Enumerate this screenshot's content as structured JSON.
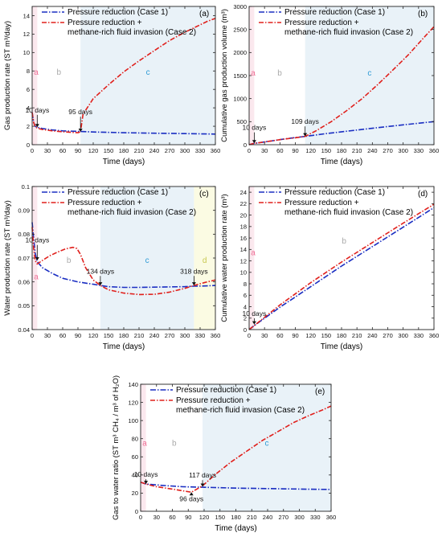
{
  "legend": {
    "case1": "Pressure reduction (Case 1)",
    "case2_line1": "Pressure reduction +",
    "case2_line2": "methane-rich fluid invasion (Case 2)"
  },
  "colors": {
    "case1": "#1a2ec2",
    "case2": "#e0201c",
    "region_a": "#fbe8ee",
    "region_bc": "#e9f2f8",
    "region_d": "#fbfbe3",
    "label_a": "#ee6f96",
    "label_b": "#a9a9a9",
    "label_c": "#2f9bd6",
    "label_d": "#c8c850"
  },
  "chart_data": [
    {
      "type": "line",
      "panel": "(a)",
      "xlabel": "Time (days)",
      "ylabel": "Gas production rate (ST m³/day)",
      "xlim": [
        0,
        360
      ],
      "ylim": [
        0,
        15
      ],
      "xticks": [
        0,
        30,
        60,
        90,
        120,
        150,
        180,
        210,
        240,
        270,
        300,
        330,
        360
      ],
      "yticks": [
        0,
        2,
        4,
        6,
        8,
        10,
        12,
        14
      ],
      "regions": [
        {
          "label": "a",
          "from": 0,
          "to": 10,
          "color": "region_a",
          "label_color": "label_a",
          "label_y": 7.6
        },
        {
          "label": "b",
          "from": 10,
          "to": 95,
          "color": null,
          "label_color": "label_b",
          "label_y": 7.6
        },
        {
          "label": "c",
          "from": 95,
          "to": 360,
          "color": "region_bc",
          "label_color": "label_c",
          "label_y": 7.6
        }
      ],
      "annotations": [
        {
          "text": "10 days",
          "x": 10,
          "y": 1.9,
          "text_y": 3.5
        },
        {
          "text": "95 days",
          "x": 95,
          "y": 1.4,
          "text_y": 3.3
        }
      ],
      "series": [
        {
          "name": "Pressure reduction (Case 1)",
          "key": "case1",
          "x": [
            0,
            3,
            6,
            10,
            20,
            40,
            60,
            90,
            120,
            180,
            240,
            300,
            360
          ],
          "y": [
            3.5,
            2.4,
            2.0,
            1.9,
            1.75,
            1.6,
            1.5,
            1.45,
            1.38,
            1.3,
            1.25,
            1.2,
            1.15
          ]
        },
        {
          "name": "Pressure reduction + methane-rich fluid invasion (Case 2)",
          "key": "case2",
          "x": [
            0,
            3,
            6,
            10,
            20,
            40,
            60,
            90,
            95,
            100,
            120,
            150,
            180,
            210,
            240,
            270,
            300,
            330,
            345,
            360
          ],
          "y": [
            3.5,
            2.4,
            2.0,
            1.8,
            1.65,
            1.5,
            1.4,
            1.3,
            1.4,
            3.3,
            5.0,
            6.5,
            7.9,
            9.1,
            10.2,
            11.3,
            12.2,
            13.0,
            13.4,
            13.7
          ]
        }
      ]
    },
    {
      "type": "line",
      "panel": "(b)",
      "xlabel": "Time (days)",
      "ylabel": "Cumulative gas production volume (m³)",
      "xlim": [
        0,
        360
      ],
      "ylim": [
        0,
        3000
      ],
      "xticks": [
        0,
        30,
        60,
        90,
        120,
        150,
        180,
        210,
        240,
        270,
        300,
        330,
        360
      ],
      "yticks": [
        0,
        500,
        1000,
        1500,
        2000,
        2500,
        3000
      ],
      "regions": [
        {
          "label": "a",
          "from": 0,
          "to": 10,
          "color": "region_a",
          "label_color": "label_a",
          "label_y": 1500
        },
        {
          "label": "b",
          "from": 10,
          "to": 109,
          "color": null,
          "label_color": "label_b",
          "label_y": 1500
        },
        {
          "label": "c",
          "from": 109,
          "to": 360,
          "color": "region_bc",
          "label_color": "label_c",
          "label_y": 1500
        }
      ],
      "annotations": [
        {
          "text": "10 days",
          "x": 10,
          "y": 30,
          "text_y": 320
        },
        {
          "text": "109 days",
          "x": 109,
          "y": 180,
          "text_y": 450
        }
      ],
      "series": [
        {
          "name": "Pressure reduction (Case 1)",
          "key": "case1",
          "x": [
            0,
            10,
            30,
            60,
            90,
            109,
            150,
            200,
            250,
            300,
            360
          ],
          "y": [
            0,
            30,
            60,
            110,
            155,
            180,
            240,
            305,
            370,
            430,
            500
          ]
        },
        {
          "name": "Pressure reduction + methane-rich fluid invasion (Case 2)",
          "key": "case2",
          "x": [
            0,
            10,
            30,
            60,
            90,
            109,
            130,
            160,
            190,
            220,
            250,
            280,
            310,
            340,
            360
          ],
          "y": [
            0,
            30,
            60,
            110,
            150,
            180,
            300,
            500,
            740,
            1000,
            1300,
            1620,
            1950,
            2320,
            2560
          ]
        }
      ]
    },
    {
      "type": "line",
      "panel": "(c)",
      "xlabel": "Time (days)",
      "ylabel": "Water production rate (ST m³/day)",
      "xlim": [
        0,
        360
      ],
      "ylim": [
        0.04,
        0.1
      ],
      "xticks": [
        0,
        30,
        60,
        90,
        120,
        150,
        180,
        210,
        240,
        270,
        300,
        330,
        360
      ],
      "yticks": [
        0.04,
        0.05,
        0.06,
        0.07,
        0.08,
        0.09,
        0.1
      ],
      "regions": [
        {
          "label": "a",
          "from": 0,
          "to": 10,
          "color": "region_a",
          "label_color": "label_a",
          "label_y": 0.061
        },
        {
          "label": "b",
          "from": 10,
          "to": 134,
          "color": null,
          "label_color": "label_b",
          "label_y": 0.068
        },
        {
          "label": "c",
          "from": 134,
          "to": 318,
          "color": "region_bc",
          "label_color": "label_c",
          "label_y": 0.068
        },
        {
          "label": "d",
          "from": 318,
          "to": 360,
          "color": "region_d",
          "label_color": "label_d",
          "label_y": 0.068
        }
      ],
      "annotations": [
        {
          "text": "10 days",
          "x": 10,
          "y": 0.069,
          "text_y": 0.0765
        },
        {
          "text": "134 days",
          "x": 134,
          "y": 0.0585,
          "text_y": 0.0635
        },
        {
          "text": "318 days",
          "x": 318,
          "y": 0.0585,
          "text_y": 0.0635
        }
      ],
      "series": [
        {
          "name": "Pressure reduction (Case 1)",
          "key": "case1",
          "x": [
            0,
            3,
            6,
            10,
            20,
            40,
            60,
            90,
            120,
            134,
            150,
            180,
            210,
            240,
            270,
            300,
            318,
            340,
            360
          ],
          "y": [
            0.085,
            0.078,
            0.072,
            0.0685,
            0.066,
            0.0635,
            0.0615,
            0.06,
            0.059,
            0.0585,
            0.058,
            0.0577,
            0.0577,
            0.0578,
            0.0579,
            0.058,
            0.0582,
            0.0583,
            0.0585
          ]
        },
        {
          "name": "Pressure reduction + methane-rich fluid invasion (Case 2)",
          "key": "case2",
          "x": [
            0,
            3,
            6,
            10,
            20,
            35,
            50,
            65,
            80,
            88,
            95,
            105,
            120,
            134,
            150,
            180,
            210,
            240,
            270,
            300,
            318,
            340,
            360
          ],
          "y": [
            0.083,
            0.074,
            0.069,
            0.0675,
            0.069,
            0.071,
            0.0725,
            0.0738,
            0.0745,
            0.074,
            0.0715,
            0.066,
            0.0608,
            0.0585,
            0.0567,
            0.0553,
            0.0547,
            0.0548,
            0.0557,
            0.0573,
            0.0585,
            0.0598,
            0.0608
          ]
        }
      ]
    },
    {
      "type": "line",
      "panel": "(d)",
      "xlabel": "Time (days)",
      "ylabel": "Cumulative water production rate (m³)",
      "xlim": [
        0,
        360
      ],
      "ylim": [
        0,
        25
      ],
      "xticks": [
        0,
        30,
        60,
        90,
        120,
        150,
        180,
        210,
        240,
        270,
        300,
        330,
        360
      ],
      "yticks": [
        0,
        2,
        4,
        6,
        8,
        10,
        12,
        14,
        16,
        18,
        20,
        22,
        24
      ],
      "regions": [
        {
          "label": "a",
          "from": 0,
          "to": 10,
          "color": "region_a",
          "label_color": "label_a",
          "label_y": 13
        },
        {
          "label": "b",
          "from": 10,
          "to": 360,
          "color": null,
          "label_color": "label_b",
          "label_y": 15
        }
      ],
      "annotations": [
        {
          "text": "10 days",
          "x": 10,
          "y": 0.9,
          "text_y": 2.4
        }
      ],
      "series": [
        {
          "name": "Pressure reduction (Case 1)",
          "key": "case1",
          "x": [
            0,
            10,
            60,
            120,
            180,
            240,
            300,
            360
          ],
          "y": [
            0,
            0.7,
            3.9,
            7.5,
            11.1,
            14.5,
            17.9,
            21.3
          ]
        },
        {
          "name": "Pressure reduction + methane-rich fluid invasion (Case 2)",
          "key": "case2",
          "x": [
            0,
            10,
            60,
            120,
            180,
            240,
            300,
            360
          ],
          "y": [
            0,
            0.7,
            4.3,
            8.2,
            11.8,
            15.2,
            18.6,
            21.9
          ]
        }
      ]
    },
    {
      "type": "line",
      "panel": "(e)",
      "xlabel": "Time (days)",
      "ylabel": "Gas to water ratio (ST m³ CH₄ / m³ of H₂O)",
      "xlim": [
        0,
        360
      ],
      "ylim": [
        0,
        140
      ],
      "xticks": [
        0,
        30,
        60,
        90,
        120,
        150,
        180,
        210,
        240,
        270,
        300,
        330,
        360
      ],
      "yticks": [
        0,
        20,
        40,
        60,
        80,
        100,
        120,
        140
      ],
      "regions": [
        {
          "label": "a",
          "from": 0,
          "to": 10,
          "color": "region_a",
          "label_color": "label_a",
          "label_y": 72
        },
        {
          "label": "b",
          "from": 10,
          "to": 117,
          "color": null,
          "label_color": "label_b",
          "label_y": 72
        },
        {
          "label": "c",
          "from": 117,
          "to": 360,
          "color": "region_bc",
          "label_color": "label_c",
          "label_y": 72
        }
      ],
      "annotations": [
        {
          "text": "10 days",
          "x": 10,
          "y": 30,
          "text_y": 38
        },
        {
          "text": "117 days",
          "x": 117,
          "y": 27,
          "text_y": 37
        },
        {
          "text": "96 days",
          "x": 96,
          "y": 21,
          "text_y": 11,
          "below": true
        }
      ],
      "series": [
        {
          "name": "Pressure reduction (Case 1)",
          "key": "case1",
          "x": [
            0,
            10,
            40,
            80,
            117,
            180,
            240,
            300,
            360
          ],
          "y": [
            32,
            30,
            28.5,
            27,
            26.5,
            25.5,
            25,
            24.5,
            24
          ]
        },
        {
          "name": "Pressure reduction + methane-rich fluid invasion (Case 2)",
          "key": "case2",
          "x": [
            0,
            10,
            30,
            60,
            80,
            96,
            105,
            117,
            140,
            170,
            200,
            230,
            260,
            290,
            320,
            345,
            360
          ],
          "y": [
            32,
            30,
            27,
            24.5,
            22.5,
            21,
            24,
            28,
            40,
            54,
            66,
            78,
            88,
            98,
            106,
            112,
            116
          ]
        }
      ]
    }
  ]
}
